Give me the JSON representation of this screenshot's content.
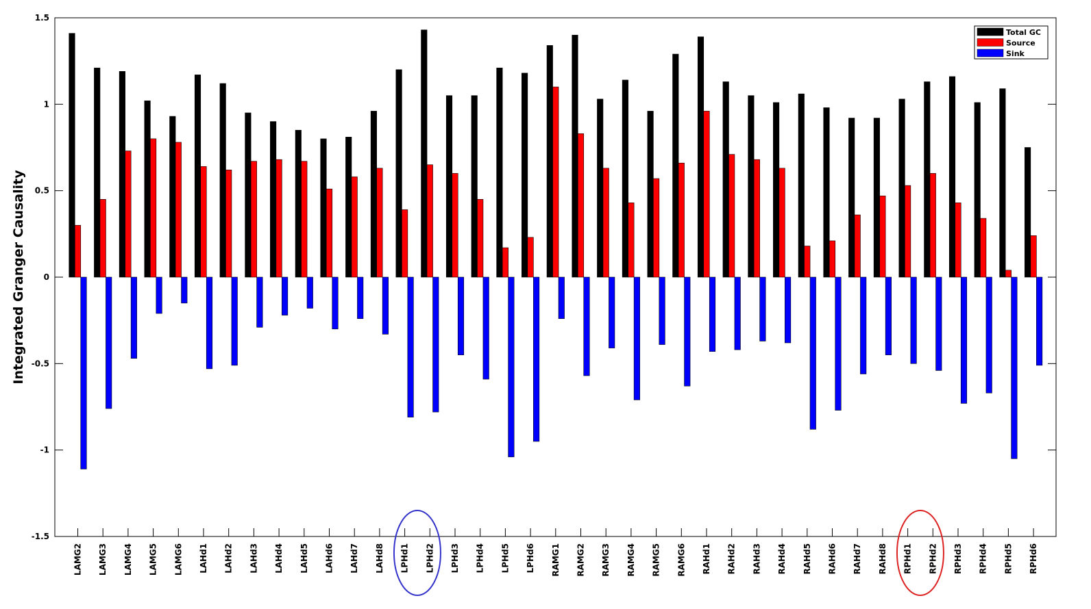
{
  "chart_data": {
    "type": "bar",
    "ylabel": "Integrated Granger Causality",
    "xlabel": "",
    "ylim": [
      -1.5,
      1.5
    ],
    "yticks": [
      -1.5,
      -1,
      -0.5,
      0,
      0.5,
      1,
      1.5
    ],
    "ytick_labels": [
      "-1.5",
      "-1",
      "-0.5",
      "0",
      "0.5",
      "1",
      "1.5"
    ],
    "grid": false,
    "legend_position": "top-right",
    "categories": [
      "LAMG2",
      "LAMG3",
      "LAMG4",
      "LAMG5",
      "LAMG6",
      "LAHd1",
      "LAHd2",
      "LAHd3",
      "LAHd4",
      "LAHd5",
      "LAHd6",
      "LAHd7",
      "LAHd8",
      "LPHd1",
      "LPHd2",
      "LPHd3",
      "LPHd4",
      "LPHd5",
      "LPHd6",
      "RAMG1",
      "RAMG2",
      "RAMG3",
      "RAMG4",
      "RAMG5",
      "RAMG6",
      "RAHd1",
      "RAHd2",
      "RAHd3",
      "RAHd4",
      "RAHd5",
      "RAHd6",
      "RAHd7",
      "RAHd8",
      "RPHd1",
      "RPHd2",
      "RPHd3",
      "RPHd4",
      "RPHd5",
      "RPHd6"
    ],
    "series": [
      {
        "name": "Total GC",
        "color": "#000000",
        "values": [
          1.41,
          1.21,
          1.19,
          1.02,
          0.93,
          1.17,
          1.12,
          0.95,
          0.9,
          0.85,
          0.8,
          0.81,
          0.96,
          1.2,
          1.43,
          1.05,
          1.05,
          1.21,
          1.18,
          1.34,
          1.4,
          1.03,
          1.14,
          0.96,
          1.29,
          1.39,
          1.13,
          1.05,
          1.01,
          1.06,
          0.98,
          0.92,
          0.92,
          1.03,
          1.13,
          1.16,
          1.01,
          1.09,
          0.75
        ]
      },
      {
        "name": "Source",
        "color": "#ff0000",
        "values": [
          0.3,
          0.45,
          0.73,
          0.8,
          0.78,
          0.64,
          0.62,
          0.67,
          0.68,
          0.67,
          0.51,
          0.58,
          0.63,
          0.39,
          0.65,
          0.6,
          0.45,
          0.17,
          0.23,
          1.1,
          0.83,
          0.63,
          0.43,
          0.57,
          0.66,
          0.96,
          0.71,
          0.68,
          0.63,
          0.18,
          0.21,
          0.36,
          0.47,
          0.53,
          0.6,
          0.43,
          0.34,
          0.04,
          0.24
        ]
      },
      {
        "name": "Sink",
        "color": "#0000ff",
        "values": [
          -1.11,
          -0.76,
          -0.47,
          -0.21,
          -0.15,
          -0.53,
          -0.51,
          -0.29,
          -0.22,
          -0.18,
          -0.3,
          -0.24,
          -0.33,
          -0.81,
          -0.78,
          -0.45,
          -0.59,
          -1.04,
          -0.95,
          -0.24,
          -0.57,
          -0.41,
          -0.71,
          -0.39,
          -0.63,
          -0.43,
          -0.42,
          -0.37,
          -0.38,
          -0.88,
          -0.77,
          -0.56,
          -0.45,
          -0.5,
          -0.54,
          -0.73,
          -0.67,
          -1.05,
          -0.51
        ]
      }
    ],
    "annotations": [
      {
        "shape": "ellipse",
        "color": "#3333cc",
        "encloses": [
          "LPHd1",
          "LPHd2"
        ]
      },
      {
        "shape": "ellipse",
        "color": "#dd2222",
        "encloses": [
          "RPHd1",
          "RPHd2"
        ]
      }
    ]
  }
}
